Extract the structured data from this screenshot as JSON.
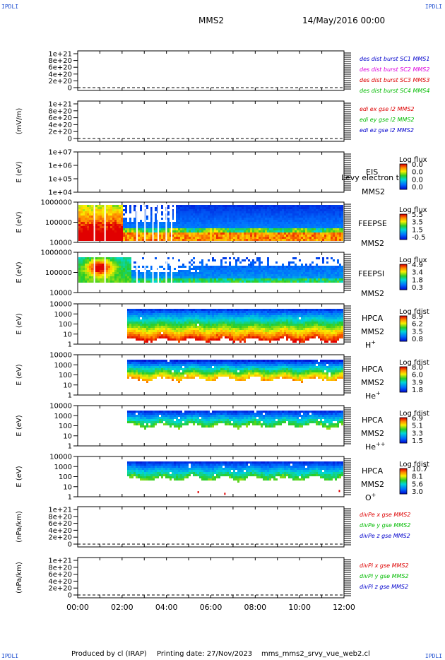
{
  "header": {
    "corner_tl": "IPDLI",
    "corner_tr": "IPDLI",
    "corner_bl": "IPDLI",
    "corner_br": "IPDLI",
    "mission": "MMS2",
    "date": "14/May/2016 00:00"
  },
  "footer": {
    "produced": "Produced by cl (IRAP)",
    "printing": "Printing date: 27/Nov/2023",
    "file": "mms_mms2_srvy_vue_web2.cl"
  },
  "chart_data": [
    {
      "type": "line",
      "ylabel": "",
      "yticks": [
        "1e+21",
        "8e+20",
        "6e+20",
        "4e+20",
        "2e+20",
        "0"
      ],
      "legend": [
        {
          "text": "des dist burst SC1 MMS1",
          "color": "#0000cc"
        },
        {
          "text": "des dist burst SC2 MMS2",
          "color": "#dd00dd"
        },
        {
          "text": "des dist burst SC3 MMS3",
          "color": "#dd0000"
        },
        {
          "text": "des dist burst SC4 MMS4",
          "color": "#00bb00"
        }
      ]
    },
    {
      "type": "line",
      "ylabel": "(mV/m)",
      "yticks": [
        "1e+21",
        "8e+20",
        "6e+20",
        "4e+20",
        "2e+20",
        "0"
      ],
      "legend": [
        {
          "text": "edi ex gse l2 MMS2",
          "color": "#dd0000"
        },
        {
          "text": "edi ey gse l2 MMS2",
          "color": "#00bb00"
        },
        {
          "text": "edi ez gse l2 MMS2",
          "color": "#0000cc"
        }
      ]
    },
    {
      "type": "heatmap",
      "ylabel": "E (eV)",
      "yticks": [
        "1e+07",
        "1e+06",
        "1e+05",
        "1e+04"
      ],
      "labels": [
        "EIS",
        "MMS2"
      ],
      "overlay": "Levy electron to",
      "cbar_title": "Log flux",
      "cbar_ticks": [
        "0.0",
        "0.0",
        "0.0",
        "0.0"
      ]
    },
    {
      "type": "heatmap",
      "ylabel": "E (eV)",
      "yticks": [
        "1000000",
        "100000",
        "10000"
      ],
      "labels": [
        "FEEPSE",
        "MMS2"
      ],
      "cbar_title": "Log flux",
      "cbar_ticks": [
        "5.5",
        "3.5",
        "1.5",
        "-0.5"
      ]
    },
    {
      "type": "heatmap",
      "ylabel": "E (eV)",
      "yticks": [
        "1000000",
        "100000",
        "10000"
      ],
      "labels": [
        "FEEPSI",
        "MMS2"
      ],
      "cbar_title": "Log flux",
      "cbar_ticks": [
        "4.9",
        "3.4",
        "1.8",
        "0.3"
      ]
    },
    {
      "type": "heatmap",
      "ylabel": "E (eV)",
      "yticks": [
        "10000",
        "1000",
        "100",
        "10",
        "1"
      ],
      "labels": [
        "HPCA",
        "MMS2",
        "H"
      ],
      "species_sup": "+",
      "cbar_title": "Log fdist",
      "cbar_ticks": [
        "8.9",
        "6.2",
        "3.5",
        "0.8"
      ]
    },
    {
      "type": "heatmap",
      "ylabel": "E (eV)",
      "yticks": [
        "10000",
        "1000",
        "100",
        "10",
        "1"
      ],
      "labels": [
        "HPCA",
        "MMS2",
        "He"
      ],
      "species_sup": "+",
      "cbar_title": "Log fdist",
      "cbar_ticks": [
        "8.0",
        "6.0",
        "3.9",
        "1.8"
      ]
    },
    {
      "type": "heatmap",
      "ylabel": "E (eV)",
      "yticks": [
        "10000",
        "1000",
        "100",
        "10",
        "1"
      ],
      "labels": [
        "HPCA",
        "MMS2",
        "He"
      ],
      "species_sup": "++",
      "cbar_title": "Log fdist",
      "cbar_ticks": [
        "6.9",
        "5.1",
        "3.3",
        "1.5"
      ]
    },
    {
      "type": "heatmap",
      "ylabel": "E (eV)",
      "yticks": [
        "10000",
        "1000",
        "100",
        "10",
        "1"
      ],
      "labels": [
        "HPCA",
        "MMS2",
        "O"
      ],
      "species_sup": "+",
      "cbar_title": "Log fdist",
      "cbar_ticks": [
        "10.7",
        "8.1",
        "5.6",
        "3.0"
      ]
    },
    {
      "type": "line",
      "ylabel": "(nPa/km)",
      "yticks": [
        "1e+21",
        "8e+20",
        "6e+20",
        "4e+20",
        "2e+20",
        "0"
      ],
      "legend": [
        {
          "text": "divPe x gse MMS2",
          "color": "#dd0000"
        },
        {
          "text": "divPe y gse MMS2",
          "color": "#00bb00"
        },
        {
          "text": "divPe z gse MMS2",
          "color": "#0000cc"
        }
      ]
    },
    {
      "type": "line",
      "ylabel": "(nPa/km)",
      "yticks": [
        "1e+21",
        "8e+20",
        "6e+20",
        "4e+20",
        "2e+20",
        "0"
      ],
      "legend": [
        {
          "text": "divPi x gse MMS2",
          "color": "#dd0000"
        },
        {
          "text": "divPi y gse MMS2",
          "color": "#00bb00"
        },
        {
          "text": "divPi z gse MMS2",
          "color": "#0000cc"
        }
      ]
    }
  ],
  "time_axis": {
    "ticks": [
      "00:00",
      "02:00",
      "04:00",
      "06:00",
      "08:00",
      "10:00",
      "12:00"
    ]
  }
}
